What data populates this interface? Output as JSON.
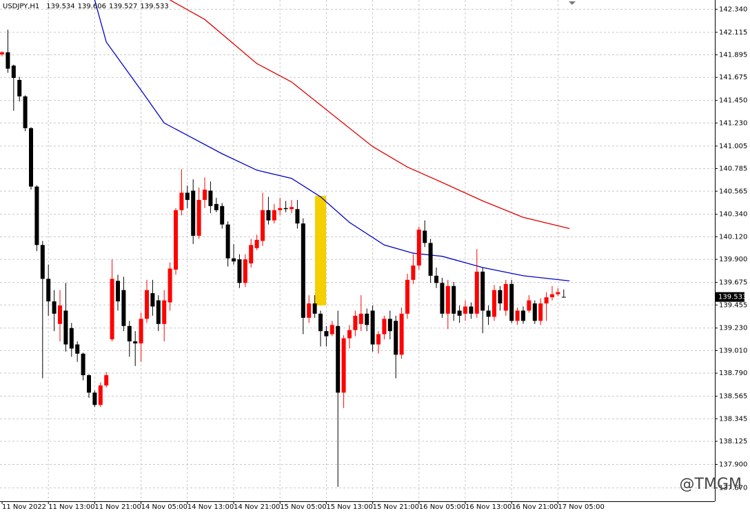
{
  "chart_data": {
    "type": "candlestick",
    "symbol": "USDJPY,H1",
    "watermark": "@TMGM",
    "up_color": "#ff0000",
    "down_color": "#000000",
    "grid": true,
    "categories": [
      "11 Nov 2022",
      null,
      null,
      null,
      null,
      null,
      null,
      null,
      "11 Nov 13:00",
      null,
      null,
      null,
      null,
      null,
      null,
      null,
      "11 Nov 21:00",
      null,
      null,
      null,
      null,
      null,
      null,
      null,
      "14 Nov 05:00",
      null,
      null,
      null,
      null,
      null,
      null,
      null,
      "14 Nov 13:00",
      null,
      null,
      null,
      null,
      null,
      null,
      null,
      "14 Nov 21:00",
      null,
      null,
      null,
      null,
      null,
      null,
      null,
      "15 Nov 05:00",
      null,
      null,
      null,
      null,
      null,
      null,
      null,
      "15 Nov 13:00",
      null,
      null,
      null,
      null,
      null,
      null,
      null,
      "15 Nov 21:00",
      null,
      null,
      null,
      null,
      null,
      null,
      null,
      "16 Nov 05:00",
      null,
      null,
      null,
      null,
      null,
      null,
      null,
      "16 Nov 13:00",
      null,
      null,
      null,
      null,
      null,
      null,
      null,
      "16 Nov 21:00",
      null,
      null,
      null,
      null,
      null,
      null,
      null,
      "17 Nov 05:00",
      null
    ],
    "open": [
      141.9,
      141.92,
      141.79,
      141.65,
      141.49,
      141.18,
      140.61,
      140.04,
      139.71,
      139.49,
      139.27,
      139.4,
      139.23,
      139.07,
      138.98,
      138.77,
      138.6,
      138.48,
      138.67,
      139.12,
      139.69,
      139.6,
      139.25,
      139.1,
      139.08,
      139.32,
      139.57,
      139.5,
      139.27,
      139.48,
      139.8,
      140.38,
      140.55,
      140.57,
      140.13,
      140.48,
      140.57,
      140.44,
      140.42,
      140.24,
      139.91,
      139.9,
      139.67,
      139.86,
      140.01,
      140.08,
      140.38,
      140.28,
      140.38,
      140.4,
      140.39,
      140.39,
      140.25,
      139.33,
      139.47,
      139.37,
      139.2,
      139.17,
      139.25,
      138.6,
      139.13,
      139.21,
      139.27,
      139.37,
      139.4,
      139.07,
      139.17,
      139.32,
      139.3,
      138.97,
      139.37,
      139.7,
      139.84,
      140.18,
      140.06,
      139.74,
      139.67,
      139.37,
      139.64,
      139.4,
      139.37,
      139.44,
      139.37,
      139.78,
      139.4,
      139.34,
      139.6,
      139.4,
      139.66,
      139.3,
      139.4,
      139.4,
      139.47,
      139.3,
      139.47,
      139.53,
      139.56,
      139.534
    ],
    "high": [
      141.93,
      142.14,
      141.8,
      141.68,
      141.5,
      141.19,
      140.62,
      140.08,
      139.85,
      139.6,
      139.6,
      139.67,
      139.28,
      139.1,
      138.99,
      138.78,
      138.62,
      138.7,
      138.8,
      139.9,
      139.75,
      139.73,
      139.3,
      139.2,
      139.38,
      139.7,
      139.7,
      139.55,
      139.6,
      139.87,
      140.4,
      140.78,
      140.62,
      140.68,
      140.6,
      140.7,
      140.66,
      140.5,
      140.45,
      140.27,
      140.05,
      139.95,
      139.95,
      140.1,
      140.14,
      140.55,
      140.51,
      140.44,
      140.5,
      140.47,
      140.48,
      140.48,
      140.3,
      139.55,
      139.55,
      139.4,
      139.25,
      139.3,
      139.4,
      139.16,
      139.26,
      139.4,
      139.55,
      139.42,
      139.45,
      139.2,
      139.35,
      139.4,
      139.35,
      139.43,
      139.76,
      139.95,
      140.22,
      140.28,
      140.1,
      139.82,
      139.72,
      139.7,
      139.68,
      139.45,
      139.5,
      139.48,
      140.0,
      139.82,
      139.45,
      139.65,
      139.64,
      139.7,
      139.7,
      139.43,
      139.44,
      139.55,
      139.5,
      139.52,
      139.58,
      139.64,
      139.62,
      139.606
    ],
    "low": [
      141.88,
      141.72,
      141.35,
      141.44,
      141.15,
      140.58,
      139.98,
      138.74,
      139.35,
      139.2,
      139.1,
      139.0,
      138.95,
      138.9,
      138.72,
      138.55,
      138.46,
      138.46,
      138.65,
      139.1,
      139.4,
      139.2,
      138.95,
      138.86,
      138.9,
      139.28,
      139.35,
      139.2,
      139.1,
      139.4,
      139.75,
      140.33,
      140.4,
      140.05,
      140.1,
      140.4,
      140.35,
      140.36,
      140.2,
      139.83,
      139.85,
      139.62,
      139.63,
      139.82,
      139.99,
      140.03,
      140.24,
      140.25,
      140.33,
      140.36,
      140.35,
      140.2,
      139.17,
      139.28,
      139.33,
      139.05,
      139.05,
      139.15,
      137.68,
      138.45,
      139.03,
      139.15,
      139.2,
      139.2,
      139.0,
      138.98,
      139.12,
      139.12,
      138.74,
      138.93,
      139.32,
      139.66,
      139.8,
      140.02,
      139.67,
      139.62,
      139.33,
      139.22,
      139.3,
      139.28,
      139.3,
      139.32,
      139.33,
      139.18,
      139.26,
      139.3,
      139.4,
      139.35,
      139.28,
      139.26,
      139.27,
      139.38,
      139.27,
      139.26,
      139.3,
      139.5,
      139.54,
      139.527
    ],
    "close": [
      141.92,
      141.76,
      141.67,
      141.49,
      141.18,
      140.61,
      140.04,
      139.71,
      139.49,
      139.37,
      139.45,
      139.07,
      139.03,
      138.98,
      138.77,
      138.6,
      138.48,
      138.67,
      138.77,
      139.71,
      139.49,
      139.25,
      139.1,
      139.08,
      139.32,
      139.6,
      139.44,
      139.27,
      139.5,
      139.81,
      140.38,
      140.55,
      140.48,
      140.13,
      140.48,
      140.58,
      140.42,
      140.38,
      140.24,
      139.91,
      139.88,
      139.67,
      139.9,
      140.04,
      140.09,
      140.38,
      140.28,
      140.38,
      140.4,
      140.39,
      140.41,
      140.25,
      139.33,
      139.47,
      139.37,
      139.2,
      139.15,
      139.26,
      138.6,
      139.13,
      139.21,
      139.35,
      139.37,
      139.26,
      139.07,
      139.17,
      139.32,
      139.2,
      138.97,
      139.37,
      139.7,
      139.84,
      140.19,
      140.06,
      139.74,
      139.67,
      139.37,
      139.64,
      139.37,
      139.35,
      139.44,
      139.37,
      139.78,
      139.4,
      139.34,
      139.6,
      139.47,
      139.66,
      139.3,
      139.4,
      139.3,
      139.5,
      139.3,
      139.47,
      139.53,
      139.56,
      139.58,
      139.533
    ],
    "lines": [
      {
        "color": "#0000c8",
        "x": [
          16,
          18,
          24,
          28,
          32,
          38,
          44,
          50,
          55,
          60,
          66,
          71,
          76,
          83,
          90,
          98
        ],
        "values": [
          142.43,
          142.02,
          141.55,
          141.23,
          141.11,
          140.93,
          140.77,
          140.69,
          140.51,
          140.26,
          140.04,
          139.96,
          139.93,
          139.82,
          139.74,
          139.69
        ]
      },
      {
        "color": "#e00000",
        "x": [
          29,
          35,
          44,
          50,
          58,
          64,
          70,
          76,
          83,
          90,
          98
        ],
        "values": [
          142.43,
          142.24,
          141.81,
          141.63,
          141.27,
          141.0,
          140.8,
          140.65,
          140.47,
          140.31,
          140.2
        ]
      }
    ],
    "ylim": [
      137.54,
      142.43
    ],
    "yticks": [
      {
        "value": 142.34,
        "label": "142.340"
      },
      {
        "value": 142.115,
        "label": "142.115"
      },
      {
        "value": 141.895,
        "label": "141.895"
      },
      {
        "value": 141.675,
        "label": "141.675"
      },
      {
        "value": 141.45,
        "label": "141.450"
      },
      {
        "value": 141.23,
        "label": "141.230"
      },
      {
        "value": 141.005,
        "label": "141.005"
      },
      {
        "value": 140.785,
        "label": "140.785"
      },
      {
        "value": 140.565,
        "label": "140.565"
      },
      {
        "value": 140.34,
        "label": "140.340"
      },
      {
        "value": 140.12,
        "label": "140.120"
      },
      {
        "value": 139.9,
        "label": "139.900"
      },
      {
        "value": 139.675,
        "label": "139.675"
      },
      {
        "value": 139.455,
        "label": "139.455"
      },
      {
        "value": 139.23,
        "label": "139.230"
      },
      {
        "value": 139.01,
        "label": "139.010"
      },
      {
        "value": 138.79,
        "label": "138.790"
      },
      {
        "value": 138.565,
        "label": "138.565"
      },
      {
        "value": 138.345,
        "label": "138.345"
      },
      {
        "value": 138.125,
        "label": "138.125"
      },
      {
        "value": 137.9,
        "label": "137.900"
      },
      {
        "value": 137.67,
        "label": "137.670"
      }
    ]
  }
}
